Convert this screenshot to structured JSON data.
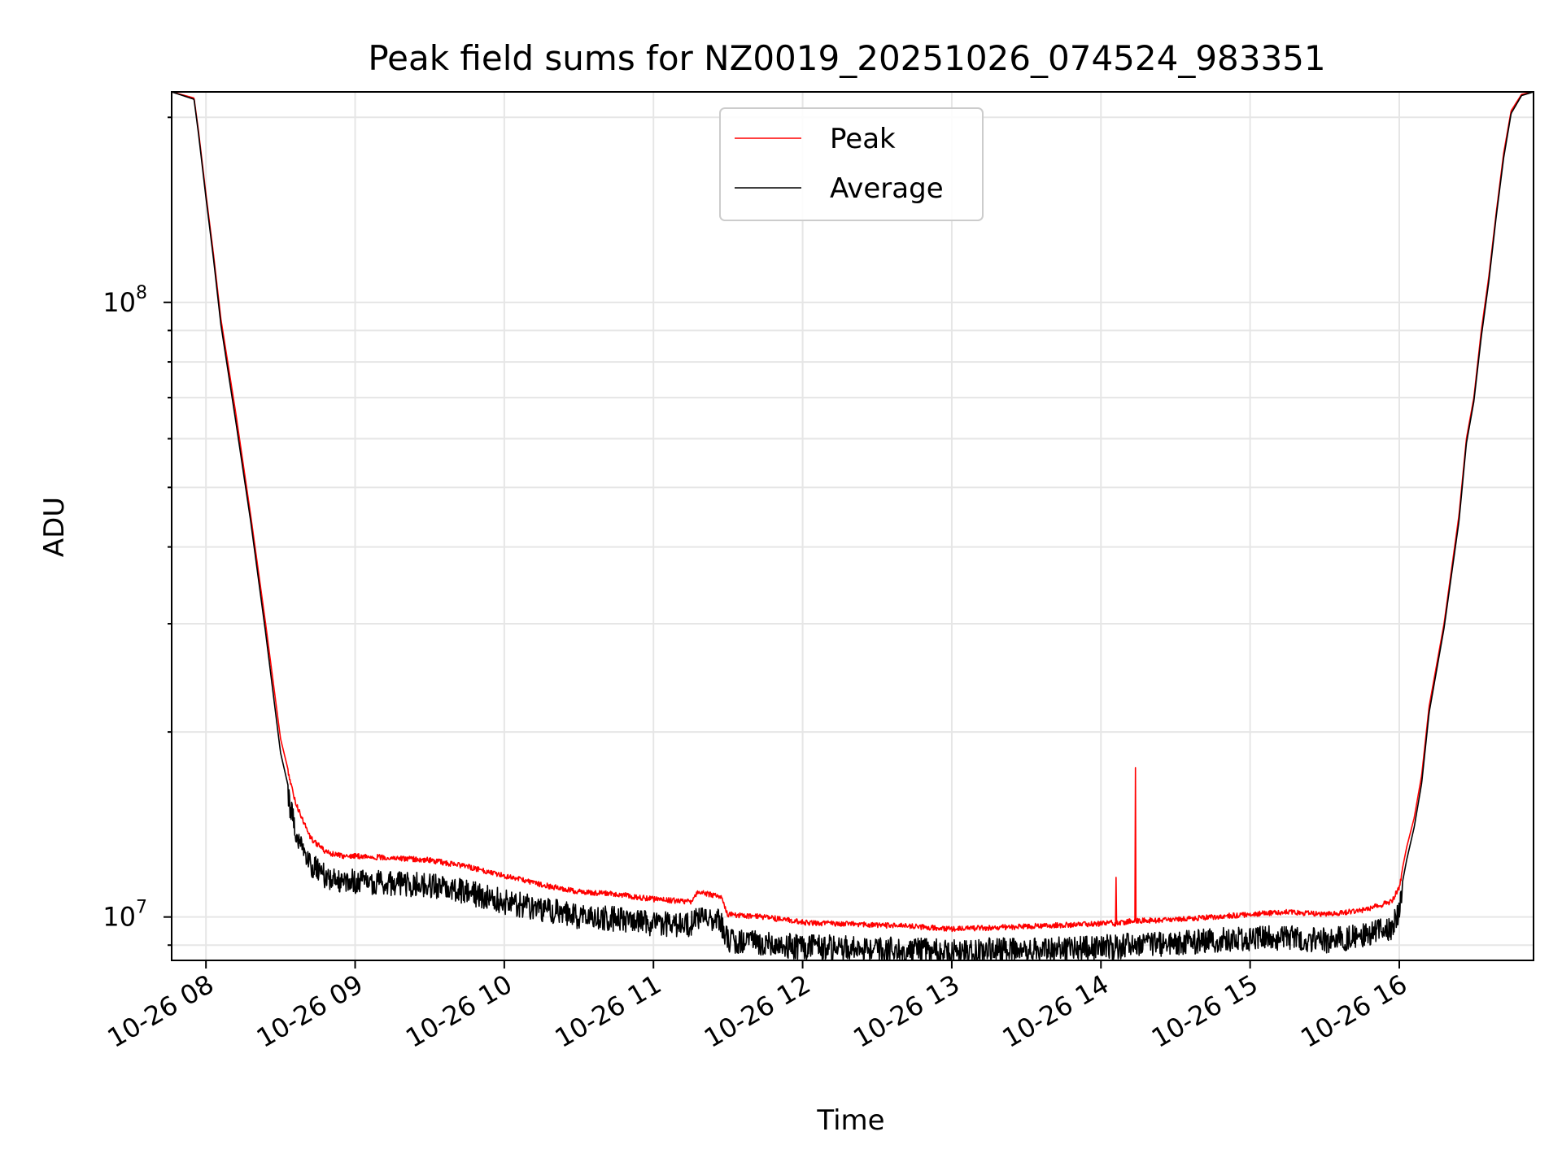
{
  "chart_data": {
    "type": "line",
    "title": "Peak field sums for NZ0019_20251026_074524_983351",
    "xlabel": "Time",
    "ylabel": "ADU",
    "yscale": "log",
    "xlim": [
      7.77,
      16.9
    ],
    "ylim": [
      8500000,
      220000000
    ],
    "grid": true,
    "legend_position": "top-center",
    "x_ticks": [
      {
        "value": 8,
        "label": "10-26 08"
      },
      {
        "value": 9,
        "label": "10-26 09"
      },
      {
        "value": 10,
        "label": "10-26 10"
      },
      {
        "value": 11,
        "label": "10-26 11"
      },
      {
        "value": 12,
        "label": "10-26 12"
      },
      {
        "value": 13,
        "label": "10-26 13"
      },
      {
        "value": 14,
        "label": "10-26 14"
      },
      {
        "value": 15,
        "label": "10-26 15"
      },
      {
        "value": 16,
        "label": "10-26 16"
      }
    ],
    "y_major_ticks": [
      {
        "value": 10000000,
        "base": "10",
        "exp": "7"
      },
      {
        "value": 100000000,
        "base": "10",
        "exp": "8"
      }
    ],
    "series": [
      {
        "name": "Peak",
        "color": "#ff0000",
        "noise_amplitude": 0.02,
        "x": [
          7.77,
          7.92,
          7.95,
          8.0,
          8.05,
          8.1,
          8.2,
          8.3,
          8.4,
          8.5,
          8.6,
          8.7,
          8.8,
          8.9,
          9.0,
          9.25,
          9.5,
          9.75,
          10.0,
          10.25,
          10.5,
          10.75,
          11.0,
          11.25,
          11.3,
          11.45,
          11.5,
          11.75,
          12.0,
          12.25,
          12.5,
          12.75,
          13.0,
          13.25,
          13.5,
          13.75,
          14.0,
          14.05,
          14.1,
          14.15,
          14.22,
          14.5,
          14.75,
          15.0,
          15.25,
          15.5,
          15.75,
          15.95,
          16.0,
          16.05,
          16.1,
          16.15,
          16.2,
          16.3,
          16.4,
          16.45,
          16.5,
          16.55,
          16.6,
          16.65,
          16.7,
          16.75,
          16.82,
          16.9
        ],
        "y": [
          220000000,
          215000000,
          190000000,
          150000000,
          120000000,
          94000000,
          66000000,
          45000000,
          30000000,
          19500000,
          15500000,
          13600000,
          12900000,
          12700000,
          12700000,
          12600000,
          12500000,
          12200000,
          11800000,
          11400000,
          11100000,
          11000000,
          10800000,
          10700000,
          11100000,
          10900000,
          10200000,
          10100000,
          9900000,
          9850000,
          9800000,
          9750000,
          9650000,
          9700000,
          9750000,
          9800000,
          9850000,
          9900000,
          9850000,
          9900000,
          9950000,
          10000000,
          10100000,
          10200000,
          10300000,
          10200000,
          10350000,
          10700000,
          11300000,
          13000000,
          14500000,
          17000000,
          22000000,
          30000000,
          45000000,
          60000000,
          70000000,
          90000000,
          110000000,
          140000000,
          175000000,
          205000000,
          218000000,
          220000000
        ],
        "spikes": [
          {
            "x": 14.1,
            "y": 11600000
          },
          {
            "x": 14.23,
            "y": 17500000
          }
        ]
      },
      {
        "name": "Average",
        "color": "#000000",
        "noise_amplitude": 0.09,
        "x": [
          7.77,
          7.92,
          7.95,
          8.0,
          8.05,
          8.1,
          8.2,
          8.3,
          8.4,
          8.5,
          8.6,
          8.7,
          8.8,
          8.9,
          9.0,
          9.25,
          9.5,
          9.75,
          10.0,
          10.25,
          10.5,
          10.75,
          11.0,
          11.25,
          11.3,
          11.45,
          11.5,
          11.75,
          12.0,
          12.25,
          12.5,
          12.75,
          13.0,
          13.25,
          13.5,
          13.75,
          14.0,
          14.05,
          14.1,
          14.15,
          14.22,
          14.5,
          14.75,
          15.0,
          15.25,
          15.5,
          15.75,
          15.95,
          16.0,
          16.05,
          16.1,
          16.15,
          16.2,
          16.3,
          16.4,
          16.45,
          16.5,
          16.55,
          16.6,
          16.65,
          16.7,
          16.75,
          16.82,
          16.9
        ],
        "y": [
          220000000,
          214000000,
          188000000,
          148000000,
          118000000,
          92000000,
          64000000,
          44000000,
          29000000,
          18500000,
          14500000,
          12800000,
          12200000,
          12000000,
          12000000,
          11900000,
          11800000,
          11500000,
          11100000,
          10800000,
          10500000,
          10400000,
          10200000,
          10200000,
          10500000,
          10300000,
          9600000,
          9500000,
          9350000,
          9350000,
          9300000,
          9250000,
          9200000,
          9250000,
          9250000,
          9300000,
          9350000,
          9400000,
          9350000,
          9400000,
          9450000,
          9500000,
          9600000,
          9650000,
          9700000,
          9600000,
          9750000,
          10100000,
          10700000,
          12400000,
          14000000,
          16500000,
          21500000,
          29500000,
          44000000,
          59000000,
          69000000,
          88000000,
          108000000,
          138000000,
          172000000,
          203000000,
          217000000,
          220000000
        ]
      }
    ]
  }
}
